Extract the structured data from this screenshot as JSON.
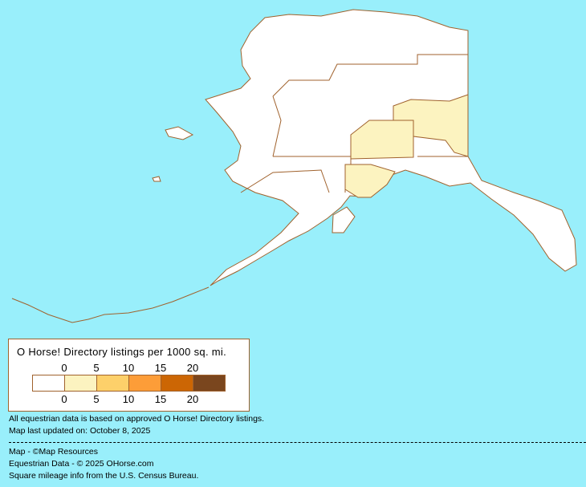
{
  "map": {
    "region": "Alaska",
    "colors": {
      "water": "#99effb",
      "land": "#ffffff",
      "border": "#a0622d",
      "highlight": "#fcf3c0"
    }
  },
  "legend": {
    "title": "O Horse! Directory listings per 1000 sq. mi.",
    "top_ticks": [
      "0",
      "5",
      "10",
      "15",
      "20"
    ],
    "bottom_ticks": [
      "0",
      "5",
      "10",
      "15",
      "20"
    ],
    "colors": [
      "#ffffff",
      "#fcf3c0",
      "#fdd06a",
      "#fd9d38",
      "#cc6604",
      "#7a461e"
    ]
  },
  "notes": {
    "data_basis": "All equestrian data is based on approved O Horse! Directory listings.",
    "updated": "Map last updated on: October 8, 2025",
    "credit_map": "Map - ©Map Resources",
    "credit_data": "Equestrian Data - © 2025 OHorse.com",
    "credit_census": "Square mileage info from the U.S. Census Bureau."
  }
}
